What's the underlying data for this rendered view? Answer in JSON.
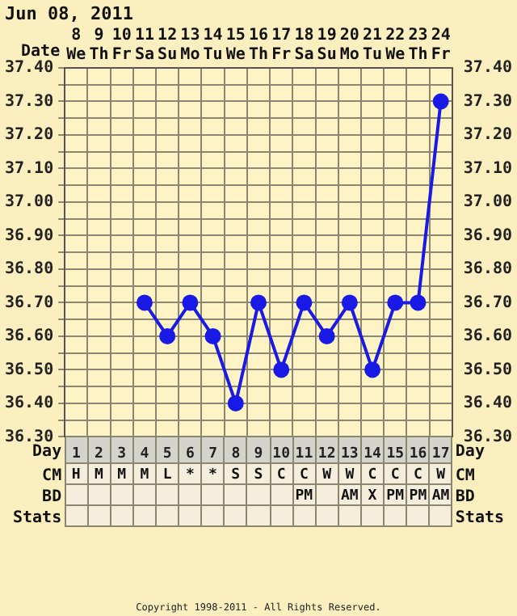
{
  "chart_data": {
    "type": "line",
    "title": "Jun 08, 2011",
    "xlabel": "Date",
    "categories": [
      "8 We",
      "9 Th",
      "10 Fr",
      "11 Sa",
      "12 Su",
      "13 Mo",
      "14 Tu",
      "15 We",
      "16 Th",
      "17 Fr",
      "18 Sa",
      "19 Su",
      "20 Mo",
      "21 Tu",
      "22 We",
      "23 Th",
      "24 Fr"
    ],
    "series": [
      {
        "color": "#1a1ae6",
        "values": [
          null,
          null,
          null,
          36.7,
          36.6,
          36.7,
          36.6,
          36.4,
          36.7,
          36.5,
          36.7,
          36.6,
          36.7,
          36.5,
          36.7,
          36.7,
          37.3
        ]
      }
    ],
    "ylim": [
      36.3,
      37.4
    ],
    "yticks": [
      {
        "value": 36.3,
        "label": "36.30"
      },
      {
        "value": 36.35,
        "label": null
      },
      {
        "value": 36.4,
        "label": "36.40"
      },
      {
        "value": 36.45,
        "label": null
      },
      {
        "value": 36.5,
        "label": "36.50"
      },
      {
        "value": 36.55,
        "label": null
      },
      {
        "value": 36.6,
        "label": "36.60"
      },
      {
        "value": 36.65,
        "label": null
      },
      {
        "value": 36.7,
        "label": "36.70"
      },
      {
        "value": 36.75,
        "label": null
      },
      {
        "value": 36.8,
        "label": "36.80"
      },
      {
        "value": 36.85,
        "label": null
      },
      {
        "value": 36.9,
        "label": "36.90"
      },
      {
        "value": 36.95,
        "label": null
      },
      {
        "value": 37.0,
        "label": "37.00"
      },
      {
        "value": 37.05,
        "label": null
      },
      {
        "value": 37.1,
        "label": "37.10"
      },
      {
        "value": 37.15,
        "label": null
      },
      {
        "value": 37.2,
        "label": "37.20"
      },
      {
        "value": 37.25,
        "label": null
      },
      {
        "value": 37.3,
        "label": "37.30"
      },
      {
        "value": 37.35,
        "label": null
      },
      {
        "value": 37.4,
        "label": "37.40"
      }
    ],
    "y2lim": [
      36.3,
      37.4
    ],
    "y2ticks": [
      {
        "value": 36.3,
        "label": "36.30"
      },
      {
        "value": 36.35,
        "label": null
      },
      {
        "value": 36.4,
        "label": "36.40"
      },
      {
        "value": 36.45,
        "label": null
      },
      {
        "value": 36.5,
        "label": "36.50"
      },
      {
        "value": 36.55,
        "label": null
      },
      {
        "value": 36.6,
        "label": "36.60"
      },
      {
        "value": 36.65,
        "label": null
      },
      {
        "value": 36.7,
        "label": "36.70"
      },
      {
        "value": 36.75,
        "label": null
      },
      {
        "value": 36.8,
        "label": "36.80"
      },
      {
        "value": 36.85,
        "label": null
      },
      {
        "value": 36.9,
        "label": "36.90"
      },
      {
        "value": 36.95,
        "label": null
      },
      {
        "value": 37.0,
        "label": "37.00"
      },
      {
        "value": 37.05,
        "label": null
      },
      {
        "value": 37.1,
        "label": "37.10"
      },
      {
        "value": 37.15,
        "label": null
      },
      {
        "value": 37.2,
        "label": "37.20"
      },
      {
        "value": 37.25,
        "label": null
      },
      {
        "value": 37.3,
        "label": "37.30"
      },
      {
        "value": 37.35,
        "label": null
      },
      {
        "value": 37.4,
        "label": "37.40"
      }
    ],
    "grid": true,
    "legend": false,
    "marker": "circle",
    "line_style": "solid",
    "x2label": "Day",
    "x2lim": [
      0.5,
      17.5
    ],
    "x2ticks": [
      1,
      2,
      3,
      4,
      5,
      6,
      7,
      8,
      9,
      10,
      11,
      12,
      13,
      14,
      15,
      16,
      17
    ],
    "annotations": [
      "CM",
      "H",
      "M",
      "M",
      "M",
      "L",
      "*",
      "*",
      "S",
      "S",
      "C",
      "C",
      "W",
      "W",
      "C",
      "C",
      "C",
      "W",
      "BD",
      null,
      null,
      null,
      null,
      null,
      null,
      null,
      null,
      null,
      null,
      "PM",
      null,
      "AM",
      "X",
      "PM",
      "PM",
      "AM",
      "Stats",
      "Copyright 1998-2011 - All Rights Reserved."
    ]
  }
}
